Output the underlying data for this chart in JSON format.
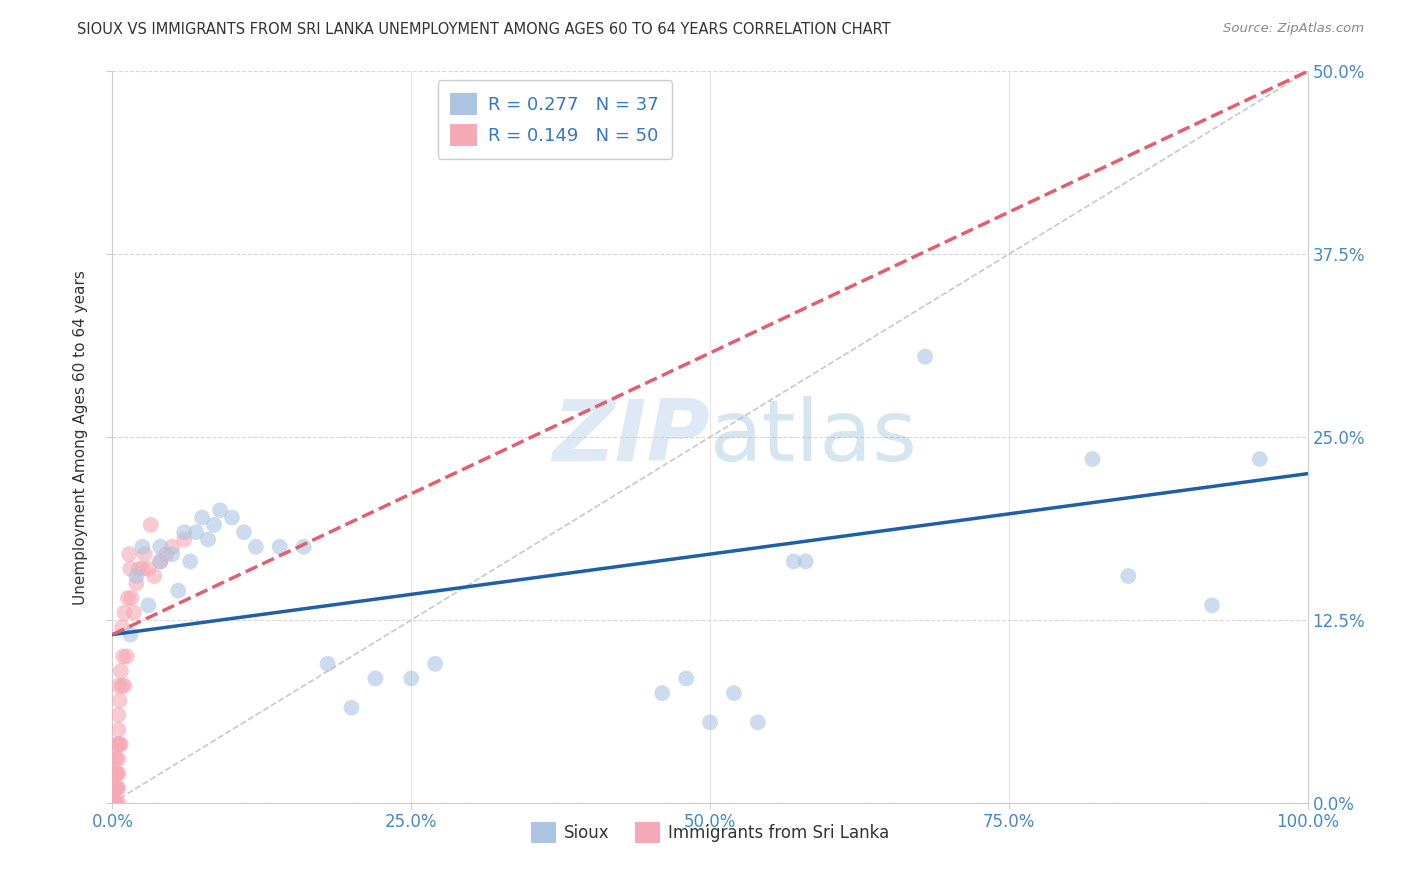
{
  "title": "SIOUX VS IMMIGRANTS FROM SRI LANKA UNEMPLOYMENT AMONG AGES 60 TO 64 YEARS CORRELATION CHART",
  "source": "Source: ZipAtlas.com",
  "ylabel": "Unemployment Among Ages 60 to 64 years",
  "watermark_zip": "ZIP",
  "watermark_atlas": "atlas",
  "legend_r_sioux": "R = 0.277",
  "legend_n_sioux": "N = 37",
  "legend_r_srilanka": "R = 0.149",
  "legend_n_srilanka": "N = 50",
  "sioux_color": "#aac4e2",
  "srilanka_color": "#f5a8b5",
  "sioux_line_color": "#1e5fa6",
  "srilanka_line_color": "#e06070",
  "ref_line_color": "#c8c8c8",
  "grid_color": "#d8d8d8",
  "axis_label_color": "#4488cc",
  "legend_text_color": "#3377cc",
  "title_color": "#333333",
  "background_color": "#ffffff",
  "sioux_x": [
    0.015,
    0.02,
    0.025,
    0.03,
    0.04,
    0.04,
    0.05,
    0.055,
    0.06,
    0.065,
    0.07,
    0.075,
    0.08,
    0.085,
    0.09,
    0.1,
    0.11,
    0.12,
    0.14,
    0.16,
    0.18,
    0.2,
    0.22,
    0.25,
    0.27,
    0.46,
    0.48,
    0.5,
    0.52,
    0.54,
    0.57,
    0.58,
    0.68,
    0.82,
    0.85,
    0.92,
    0.96
  ],
  "sioux_y": [
    0.115,
    0.155,
    0.175,
    0.135,
    0.165,
    0.175,
    0.17,
    0.145,
    0.185,
    0.165,
    0.185,
    0.195,
    0.18,
    0.19,
    0.2,
    0.195,
    0.185,
    0.175,
    0.175,
    0.175,
    0.095,
    0.065,
    0.085,
    0.085,
    0.095,
    0.075,
    0.085,
    0.055,
    0.075,
    0.055,
    0.165,
    0.165,
    0.305,
    0.235,
    0.155,
    0.135,
    0.235
  ],
  "srilanka_x": [
    0.002,
    0.002,
    0.002,
    0.002,
    0.002,
    0.002,
    0.002,
    0.002,
    0.002,
    0.003,
    0.003,
    0.003,
    0.003,
    0.003,
    0.004,
    0.004,
    0.005,
    0.005,
    0.005,
    0.005,
    0.005,
    0.005,
    0.005,
    0.005,
    0.006,
    0.006,
    0.007,
    0.007,
    0.008,
    0.008,
    0.009,
    0.01,
    0.01,
    0.012,
    0.013,
    0.014,
    0.015,
    0.016,
    0.018,
    0.02,
    0.022,
    0.025,
    0.027,
    0.03,
    0.032,
    0.035,
    0.04,
    0.045,
    0.05,
    0.06
  ],
  "srilanka_y": [
    0.0,
    0.0,
    0.0,
    0.0,
    0.0,
    0.01,
    0.01,
    0.02,
    0.03,
    0.0,
    0.01,
    0.02,
    0.03,
    0.04,
    0.01,
    0.02,
    0.0,
    0.01,
    0.02,
    0.03,
    0.04,
    0.05,
    0.06,
    0.08,
    0.04,
    0.07,
    0.04,
    0.09,
    0.08,
    0.12,
    0.1,
    0.08,
    0.13,
    0.1,
    0.14,
    0.17,
    0.16,
    0.14,
    0.13,
    0.15,
    0.16,
    0.16,
    0.17,
    0.16,
    0.19,
    0.155,
    0.165,
    0.17,
    0.175,
    0.18
  ],
  "xlim": [
    0.0,
    1.0
  ],
  "ylim": [
    0.0,
    0.5
  ],
  "xtick_labels": [
    "0.0%",
    "25.0%",
    "50.0%",
    "75.0%",
    "100.0%"
  ],
  "xtick_positions": [
    0.0,
    0.25,
    0.5,
    0.75,
    1.0
  ],
  "ytick_labels": [
    "0.0%",
    "12.5%",
    "25.0%",
    "37.5%",
    "50.0%"
  ],
  "ytick_positions": [
    0.0,
    0.125,
    0.25,
    0.375,
    0.5
  ],
  "sioux_trend_x": [
    0.0,
    1.0
  ],
  "sioux_trend_y": [
    0.115,
    0.225
  ],
  "srilanka_trend_x": [
    0.0,
    1.0
  ],
  "srilanka_trend_y": [
    0.115,
    0.5
  ],
  "ref_line_x": [
    0.0,
    1.0
  ],
  "ref_line_y": [
    0.0,
    0.5
  ],
  "marker_size": 130,
  "marker_alpha": 0.6,
  "line_width": 2.5
}
